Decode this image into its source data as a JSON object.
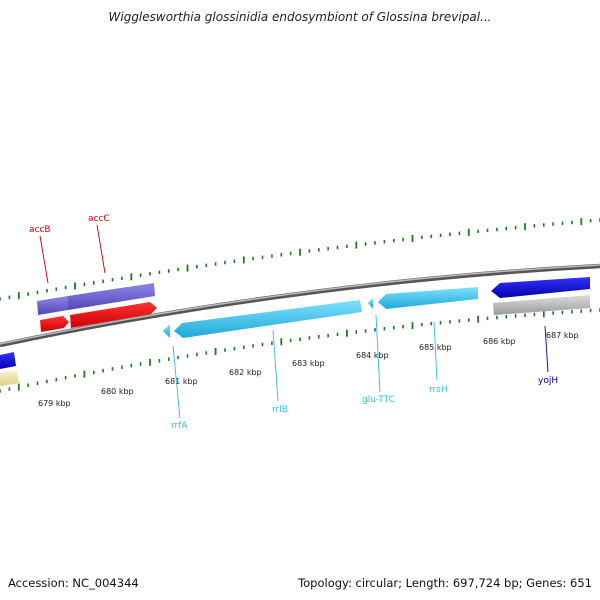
{
  "title": "Wigglesworthia glossinidia endosymbiont of Glossina brevipal...",
  "footer": {
    "accession": "Accession: NC_004344",
    "summary": "Topology: circular; Length: 697,724 bp; Genes: 651"
  },
  "ticks": [
    {
      "label": "679 kbp"
    },
    {
      "label": "680 kbp"
    },
    {
      "label": "681 kbp"
    },
    {
      "label": "682 kbp"
    },
    {
      "label": "683 kbp"
    },
    {
      "label": "684 kbp"
    },
    {
      "label": "685 kbp"
    },
    {
      "label": "686 kbp"
    },
    {
      "label": "687 kbp"
    }
  ],
  "genes": [
    {
      "label": "accB",
      "color": "#cc0000"
    },
    {
      "label": "accC",
      "color": "#cc0000"
    },
    {
      "label": "rrfA",
      "color": "#33bbdd"
    },
    {
      "label": "rrlB",
      "color": "#33bbdd"
    },
    {
      "label": "glu-TTC",
      "color": "#33bbdd"
    },
    {
      "label": "rrsH",
      "color": "#33bbdd"
    },
    {
      "label": "yojH",
      "color": "#000099"
    }
  ],
  "colors": {
    "backbone": "#888888",
    "tick_marks": "#227722",
    "purple_feature": "#6a5acd",
    "red_feature": "#ee0000",
    "rna_feature": "#33c4f0",
    "blue_feature": "#0000dd",
    "gray_feature": "#b5b5b5",
    "yellow_feature": "#eee8aa"
  }
}
